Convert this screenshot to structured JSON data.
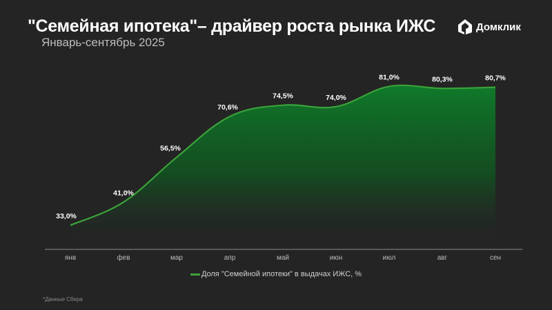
{
  "header": {
    "title": "\"Семейная ипотека\"– драйвер роста рынка ИЖС",
    "subtitle": "Январь-сентябрь 2025",
    "logo_text": "Домклик"
  },
  "footnote": "*Данные Сбера",
  "colors": {
    "background": "#242424",
    "line": "#3aa33a",
    "area_top": "#107a2a",
    "axis": "#6a6a6a"
  },
  "chart_data": {
    "type": "area",
    "title": "\"Семейная ипотека\"– драйвер роста рынка ИЖС",
    "subtitle": "Январь-сентябрь 2025",
    "categories": [
      "янв",
      "фев",
      "мар",
      "апр",
      "май",
      "июн",
      "июл",
      "авг",
      "сен"
    ],
    "series": [
      {
        "name": "Доля \"Семейной ипотеки\" в выдачах ИЖС, %",
        "values": [
          33.0,
          41.0,
          56.5,
          70.6,
          74.5,
          74.0,
          81.0,
          80.3,
          80.7
        ],
        "labels": [
          "33,0%",
          "41,0%",
          "56,5%",
          "70,6%",
          "74,5%",
          "74,0%",
          "81,0%",
          "80,3%",
          "80,7%"
        ]
      }
    ],
    "xlabel": "",
    "ylabel": "",
    "y_axis_shown": false,
    "grid": false,
    "smooth": true,
    "legend_position": "bottom"
  }
}
